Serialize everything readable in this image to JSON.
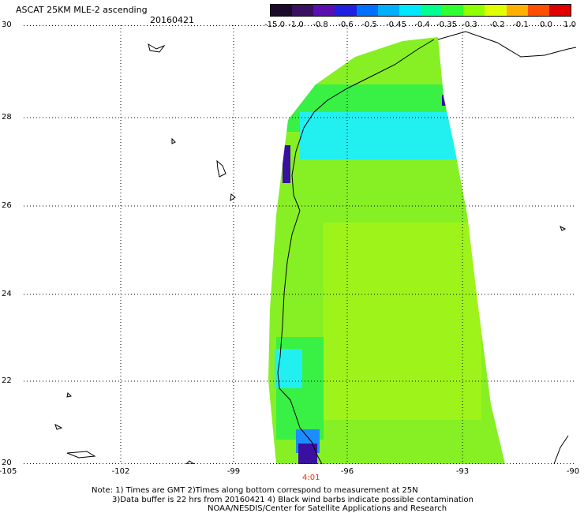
{
  "header": {
    "title": "ASCAT 25KM MLE-2 ascending",
    "date": "20160421"
  },
  "colorbar": {
    "labels": [
      "-15.0",
      "-1.0",
      "-0.8",
      "-0.6",
      "-0.5",
      "-0.45",
      "-0.4",
      "-0.35",
      "-0.3",
      "-0.2",
      "-0.1",
      "0.0",
      "1.0"
    ],
    "colors": [
      "#1a0a2a",
      "#3a1060",
      "#5a10b0",
      "#2020e0",
      "#0070ff",
      "#00b0ff",
      "#00e8ff",
      "#00ff90",
      "#30ff30",
      "#90ff00",
      "#e0ff00",
      "#ffb000",
      "#ff5000",
      "#e00000"
    ]
  },
  "map": {
    "lat_labels": [
      "30",
      "28",
      "26",
      "24",
      "22",
      "20"
    ],
    "lon_labels": [
      "-105",
      "-102",
      "-99",
      "-96",
      "-93",
      "-90"
    ],
    "lat_range": [
      20,
      30
    ],
    "lon_range": [
      -105,
      -90
    ],
    "grid": "dotted",
    "swath_time": "4:01",
    "colors": {
      "swath_main": "#86f025",
      "swath_lime": "#9ef41a",
      "swath_green": "#39f045",
      "swath_cyan": "#22f0f0",
      "swath_purple": "#3a10a0",
      "swath_blue": "#1d8cff",
      "coastline": "#000000"
    }
  },
  "notes": {
    "line1": "Note: 1) Times are GMT 2)Times along bottom correspond to measurement at 25N",
    "line2": "3)Data buffer is 22 hrs from 20160421 4) Black wind barbs indicate possible contamination",
    "line3": "NOAA/NESDIS/Center for Satellite Applications and Research"
  }
}
